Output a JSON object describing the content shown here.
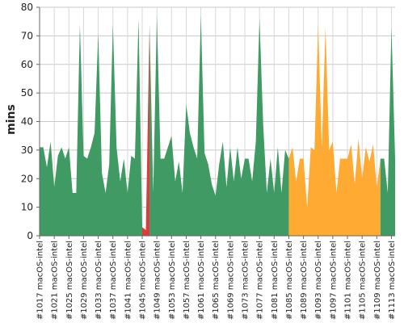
{
  "chart_data": {
    "type": "area",
    "ylabel": "mins",
    "xlabel": "",
    "ylim": [
      0,
      80
    ],
    "yticks": [
      0,
      10,
      20,
      30,
      40,
      50,
      60,
      70,
      80
    ],
    "grid": true,
    "legend": "none",
    "tick_labels": [
      "#1017 macOS-intel",
      "#1021 macOS-intel",
      "#1025 macOS-intel",
      "#1029 macOS-intel",
      "#1033 macOS-intel",
      "#1037 macOS-intel",
      "#1041 macOS-intel",
      "#1045 macOS-intel",
      "#1049 macOS-intel",
      "#1053 macOS-intel",
      "#1057 macOS-intel",
      "#1061 macOS-intel",
      "#1065 macOS-intel",
      "#1069 macOS-intel",
      "#1073 macOS-intel",
      "#1077 macOS-intel",
      "#1081 macOS-intel",
      "#1085 macOS-intel",
      "#1089 macOS-intel",
      "#1093 macOS-intel",
      "#1097 macOS-intel",
      "#1101 macOS-intel",
      "#1105 macOS-intel",
      "#1109 macOS-intel",
      "#1113 macOS-intel"
    ],
    "first_build": 1017,
    "values": [
      31,
      31,
      24,
      33,
      17,
      28,
      31,
      27,
      31,
      15,
      15,
      74,
      28,
      27,
      31,
      36,
      71,
      22,
      15,
      25,
      74,
      31,
      19,
      27,
      15,
      28,
      27,
      76,
      3,
      2,
      74,
      15,
      77,
      27,
      27,
      31,
      35,
      19,
      26,
      15,
      46,
      36,
      31,
      27,
      77,
      29,
      25,
      18,
      14,
      25,
      33,
      17,
      31,
      19,
      31,
      20,
      27,
      27,
      19,
      33,
      76,
      39,
      15,
      27,
      15,
      31,
      15,
      30,
      27,
      31,
      19,
      27,
      27,
      10,
      31,
      30,
      74,
      31,
      73,
      30,
      33,
      15,
      27,
      27,
      27,
      32,
      18,
      34,
      20,
      31,
      26,
      32,
      17,
      27,
      27,
      15,
      73,
      27
    ],
    "segment_colors": [
      {
        "status": "success",
        "from": 0,
        "to": 28,
        "color": "#3f9a63"
      },
      {
        "status": "failure",
        "from": 28,
        "to": 30,
        "color": "#e03a3a"
      },
      {
        "status": "success",
        "from": 30,
        "to": 68,
        "color": "#3f9a63"
      },
      {
        "status": "warning",
        "from": 68,
        "to": 93,
        "color": "#ffaa33"
      },
      {
        "status": "success",
        "from": 93,
        "to": 97,
        "color": "#3f9a63"
      }
    ]
  }
}
